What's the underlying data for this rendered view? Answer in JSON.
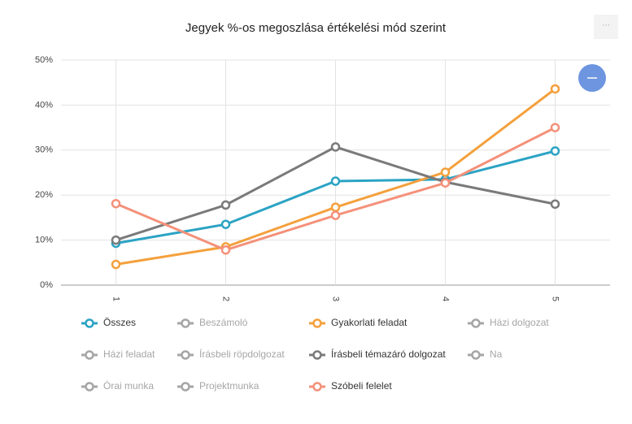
{
  "chart_data": {
    "type": "line",
    "title": "Jegyek %-os megoszlása értékelési mód szerint",
    "categories": [
      "1",
      "2",
      "3",
      "4",
      "5"
    ],
    "ylim": [
      0,
      50
    ],
    "yticks": [
      {
        "value": 0,
        "label": "0%"
      },
      {
        "value": 10,
        "label": "10%"
      },
      {
        "value": 20,
        "label": "20%"
      },
      {
        "value": 30,
        "label": "30%"
      },
      {
        "value": 40,
        "label": "40%"
      },
      {
        "value": 50,
        "label": "50%"
      }
    ],
    "grid": true,
    "legend": "bottom",
    "series": [
      {
        "name": "Összes",
        "color": "#2ba3c4",
        "values": [
          9.3,
          13.5,
          23.1,
          23.5,
          29.8
        ]
      },
      {
        "name": "Beszámoló",
        "color": "#a6a6a6",
        "visible": false
      },
      {
        "name": "Gyakorlati feladat",
        "color": "#f4a03c",
        "values": [
          4.6,
          8.5,
          17.3,
          25.1,
          43.6
        ]
      },
      {
        "name": "Házi dolgozat",
        "color": "#a6a6a6",
        "visible": false
      },
      {
        "name": "Házi feladat",
        "color": "#a6a6a6",
        "visible": false
      },
      {
        "name": "Írásbeli röpdolgozat",
        "color": "#a6a6a6",
        "visible": false
      },
      {
        "name": "Írásbeli témazáró dolgozat",
        "color": "#7a7a7a",
        "values": [
          10.0,
          17.8,
          30.7,
          22.9,
          18.0
        ]
      },
      {
        "name": "Na",
        "color": "#a6a6a6",
        "visible": false
      },
      {
        "name": "Órai munka",
        "color": "#a6a6a6",
        "visible": false
      },
      {
        "name": "Projektmunka",
        "color": "#a6a6a6",
        "visible": false
      },
      {
        "name": "Szóbeli felelet",
        "color": "#f4917a",
        "values": [
          18.1,
          7.8,
          15.5,
          22.7,
          35.0
        ]
      }
    ]
  }
}
